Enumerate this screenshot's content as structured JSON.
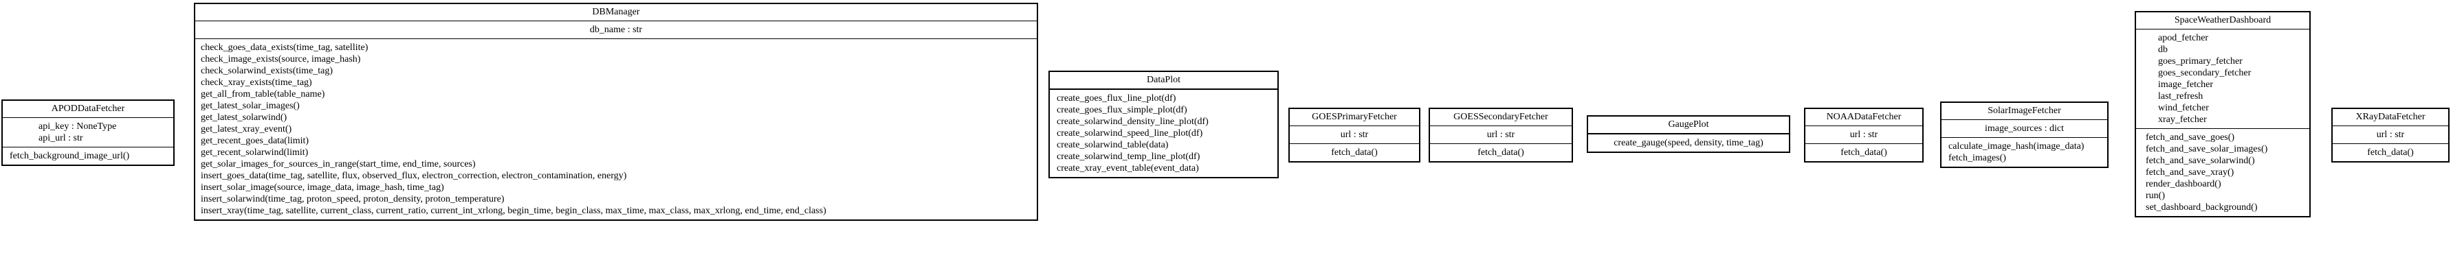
{
  "classes": [
    {
      "name": "APODDataFetcher",
      "attributes": [
        "api_key : NoneType",
        "api_url : str"
      ],
      "methods": [
        "fetch_background_image_url()"
      ]
    },
    {
      "name": "DBManager",
      "attributes": [
        "db_name : str"
      ],
      "methods": [
        "check_goes_data_exists(time_tag, satellite)",
        "check_image_exists(source, image_hash)",
        "check_solarwind_exists(time_tag)",
        "check_xray_exists(time_tag)",
        "get_all_from_table(table_name)",
        "get_latest_solar_images()",
        "get_latest_solarwind()",
        "get_latest_xray_event()",
        "get_recent_goes_data(limit)",
        "get_recent_solarwind(limit)",
        "get_solar_images_for_sources_in_range(start_time, end_time, sources)",
        "insert_goes_data(time_tag, satellite, flux, observed_flux, electron_correction, electron_contamination, energy)",
        "insert_solar_image(source, image_data, image_hash, time_tag)",
        "insert_solarwind(time_tag, proton_speed, proton_density, proton_temperature)",
        "insert_xray(time_tag, satellite, current_class, current_ratio, current_int_xrlong, begin_time, begin_class, max_time, max_class, max_xrlong, end_time, end_class)"
      ]
    },
    {
      "name": "DataPlot",
      "attributes": [],
      "methods": [
        "create_goes_flux_line_plot(df)",
        "create_goes_flux_simple_plot(df)",
        "create_solarwind_density_line_plot(df)",
        "create_solarwind_speed_line_plot(df)",
        "create_solarwind_table(data)",
        "create_solarwind_temp_line_plot(df)",
        "create_xray_event_table(event_data)"
      ]
    },
    {
      "name": "GOESPrimaryFetcher",
      "attributes": [
        "url : str"
      ],
      "methods": [
        "fetch_data()"
      ]
    },
    {
      "name": "GOESSecondaryFetcher",
      "attributes": [
        "url : str"
      ],
      "methods": [
        "fetch_data()"
      ]
    },
    {
      "name": "GaugePlot",
      "attributes": [],
      "methods": [
        "create_gauge(speed, density, time_tag)"
      ]
    },
    {
      "name": "NOAADataFetcher",
      "attributes": [
        "url : str"
      ],
      "methods": [
        "fetch_data()"
      ]
    },
    {
      "name": "SolarImageFetcher",
      "attributes": [
        "image_sources : dict"
      ],
      "methods": [
        "calculate_image_hash(image_data)",
        "fetch_images()"
      ]
    },
    {
      "name": "SpaceWeatherDashboard",
      "attributes": [
        "apod_fetcher",
        "db",
        "goes_primary_fetcher",
        "goes_secondary_fetcher",
        "image_fetcher",
        "last_refresh",
        "wind_fetcher",
        "xray_fetcher"
      ],
      "methods": [
        "fetch_and_save_goes()",
        "fetch_and_save_solar_images()",
        "fetch_and_save_solarwind()",
        "fetch_and_save_xray()",
        "render_dashboard()",
        "run()",
        "set_dashboard_background()"
      ]
    },
    {
      "name": "XRayDataFetcher",
      "attributes": [
        "url : str"
      ],
      "methods": [
        "fetch_data()"
      ]
    }
  ]
}
